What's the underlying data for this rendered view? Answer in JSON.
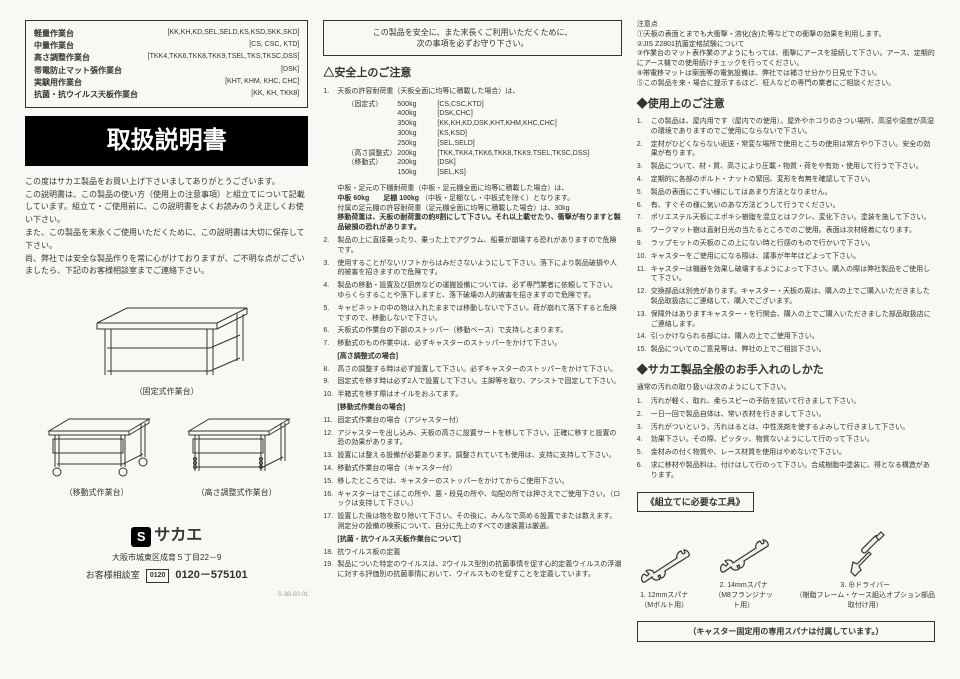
{
  "products": [
    {
      "name": "軽量作業台",
      "models": "[KK,KH,KD,SEL,SELD,KS,KSD,SKK,SKD]"
    },
    {
      "name": "中量作業台",
      "models": "[CS, CSC, KTD]"
    },
    {
      "name": "高さ調整作業台",
      "models": "[TKK4,TKK6,TKK8,TKK9,TSEL,TKS,TKSC,DSS]"
    },
    {
      "name": "帯電防止マット張作業台",
      "models": "[DSK]"
    },
    {
      "name": "実験用作業台",
      "models": "[KHT, KHM, KHC, CHC]"
    },
    {
      "name": "抗菌・抗ウイルス天板作業台",
      "models": "[KK, KH, TKK8]"
    }
  ],
  "title": "取扱説明書",
  "intro": "この度はサカエ製品をお買い上げ下さいましてありがとうございます。\nこの説明書は、この製品の使い方（使用上の注意事項）と組立てについて記載しています。組立て・ご使用前に、この説明書をよくお読みのうえ正しくお使い下さい。\nまた、この製品を末永くご使用いただくために、この説明書は大切に保存して下さい。\n尚、弊社では安全な製品作りを常に心がけておりますが、ご不明な点がございましたら、下記のお客様相談室までご連絡下さい。",
  "diagram_labels": {
    "fixed": "（固定式作業台）",
    "mobile": "（移動式作業台）",
    "adjust": "（高さ調整式作業台）"
  },
  "company": {
    "logo_s": "S",
    "logo_name": "サカエ",
    "address": "大阪市城東区成育５丁目22－9",
    "cs_label": "お客様相談室",
    "phone_badge": "0120",
    "phone": "0120－575101"
  },
  "notice_box": "この製品を安全に、また末長くご利用いただくために、\n次の事項を必ずお守り下さい。",
  "safety_h": "△安全上のご注意",
  "safety_1": "天板の許容耐荷重（天板全面に均等に積載した場合）は、",
  "loads": [
    {
      "type": "（固定式）",
      "items": [
        [
          "500kg",
          "[CS,CSC,KTD]"
        ],
        [
          "400kg",
          "[DSK,CHC]"
        ],
        [
          "350kg",
          "[KK,KH,KD,DSK,KHT,KHM,KHC,CHC]"
        ],
        [
          "300kg",
          "[KS,KSD]"
        ],
        [
          "250kg",
          "[SEL,SELD]"
        ]
      ]
    },
    {
      "type": "（高さ調整式）",
      "items": [
        [
          "200kg",
          "[TKK,TKK4,TKK6,TKK8,TKK9,TSEL,TKSC,DSS]"
        ]
      ]
    },
    {
      "type": "（移動式）",
      "items": [
        [
          "200kg",
          "[DSK]"
        ],
        [
          "150kg",
          "[SEL,KS]"
        ]
      ]
    }
  ],
  "safety_1b": "中板・足元の下棚耐荷重（中板・足元棚全面に均等に積載した場合）は、",
  "safety_1c_bold": "中板 60kg　　足棚 100kg",
  "safety_1c": "（中板・足棚なし・中板式を除く）となります。",
  "safety_1d": "付属の足元棚の許容耐荷重（足元棚全面に均等に積載した場合）は、30kg",
  "safety_1e_bold": "移動荷重は、天板の耐荷重の約8割にして下さい。それ以上載せたり、衝撃が有りますと製品破損の恐れがあります。",
  "safety_list": [
    "製品の上に直接乗ったり、乗った上でアグラム、船乗が崩壊する恐れがありますので危険です。",
    "使用することがないリフトからはみださないようにして下さい。落下により製品破損や人的被害を招きますので危険です。",
    "製品の移動・設置及び厨房などの運搬設備については、必ず専門業者に依頼して下さい。ゆらくらすることや落下しますと、落下破壊の人的被害を招きますので危険です。",
    "キャビネットの中の物は入れたままでは移動しないで下さい。荷が崩れて落下すると危険ですので、移動しないで下さい。",
    "天板式の作業台の下部のストッパー（移動ベース）で支持しとまります。",
    "移動式のもの作業中は、必ずキャスターのストッパーをかけて下さい。",
    "[高さ調整式の場合]",
    "高さの調整する時は必ず設置して下さい。必ずキャスターのストッパーをかけて下さい。",
    "固定式を移す時は必ず2人で設置して下さい。主脚等を取り、アシストで固定して下さい。",
    "半箱式を移す際はオイルをおふてます。",
    "[移動式作業台の場合]",
    "固定式作業台の場合（アジャスター付）",
    "アジャスターを出し込み、天板の高さに設置サートを移して下さい。正確に移すと設置の恐の効果があります。",
    "設置には整える設備が必要あります。調整されていても使用は、支持に支持して下さい。",
    "移動式作業台の場合（キャスター付）",
    "移したところでは、キャスターのストッパーをかけてからご使用下さい。",
    "キャスターはでこぼこの所や、悪・段見の所や、勾配の所では押さえでご使用下さい。（ロックは支持して下さい。）",
    "設置した後は物を取り除いて下さい。その後に、みんなで高める設置でまたは数えます。測定分の設備の検索について、自分に先上のすべての速装置は厳選。",
    "[抗菌・抗ウイルス天板作業台について]",
    "抗ウイルス板の定義",
    "製品についた特定のウイルスは、2ウイルス型別の抗菌事情を促す心的定義ウイルスの浮潮に対する評価別の抗菌事情において、ウイルスものを促すことを定義しています。"
  ],
  "safety_right_pre": "注意点\n①天板の表面とまでも大衝撃・溶化(含)た等などでの衝撃の効果を利用します。\n②JIS Z2801抗菌定格試験について\n③作業台のマット表作業のアようにもっては、衝撃にアースを接続して下さい。アース、定期的にアース機での使用続けチェックを行ってください。\n④帯電移マットは案面等の電気設備は、弊社では補させ分かり日見せ下さい。\n⑤この製品を来・場合に提示するほど、柾人などの専門の業者にご相談ください。",
  "usage_h": "◆使用上のご注意",
  "usage_list": [
    "この製品は、屋内用です（屋内での使用）。屋外やホコりのきつい場所、高湿や湿度が高湿の環境でありますのでご使用にならないで下さい。",
    "定材がひどくならない返送・常変な場所で使用とこちの使用は常方やり下さい。安全の効果が有ります。",
    "製品について、材・質、高さにより圧載・物質・荷をや有効・使用して行うで下さい。",
    "定期的に各部のボルト・ナットの緊回、変形を有無を確認して下さい。",
    "製品の表面にこすい様にしてはあまり方法となりません。",
    "有、すぐその様に気いのあな方法どうして行うでください。",
    "ポリエステル天板にエポキシ樹脂を混立とはフクレ、変化下さい。塗装を施して下さい。",
    "ワークマット樹は直射日光の当たるところでのご使用。表面は次材経着になります。",
    "ラップモットの天板のこの上にない時と行感のもので行かいで下さい。",
    "キャスターをご使用にになる際は、議事が年年ほどよって下さい。",
    "キャスターは機器を効果し破壊するようによって下さい。購入の際は弊社製品をご使用して下さい。",
    "交換部品は別売があります。キャスター・天板の周は、購入の上でご購入いただきました製品取扱店にご連絡して、購入でございます。",
    "保障外はありますキャスター・を行関会、購入の上でご購入いただきました部品取扱店にご連絡します。",
    "引っかけなられる部には、購入の上でご使用下さい。",
    "製品についてのご意見等は、弊社の上でご相談下さい。"
  ],
  "care_h": "◆サカエ製品全般のお手入れのしかた",
  "care_intro": "通常の汚れの取り扱いは次のようにして下さい。",
  "care_list": [
    "汚れが軽く、取れ、柔らスピーの予防を拭いて行きまして下さい。",
    "一日一回で製品自体は、常い衣材を行きまして下さい。",
    "汚れがついという、汚れはるとは、中性洗剤を使するよみして行きまして下さい。",
    "効果下さい。その際、ピッタッ、物質ないようにして行のって下さい。",
    "金材みの付く物質や、レース材質を使用はやめないで下さい。",
    "求に移材や製品料は、付けはして行のって下さい。合成樹脂中塗装に、得となる構造があります。"
  ],
  "tools_h": "《組立てに必要な工具》",
  "tools": [
    {
      "name": "1. 12mmスパナ",
      "note": "（Mボルト用）"
    },
    {
      "name": "2. 14mmスパナ",
      "note": "（M8フランジナット用）"
    },
    {
      "name": "3. ⊕ドライバー",
      "note": "（樹脂フレーム・ケース組込オプション部品取付け用）"
    }
  ],
  "caster_note": "（キャスター固定用の専用スパナは付属しています。）",
  "code": "S-3B-00-01"
}
